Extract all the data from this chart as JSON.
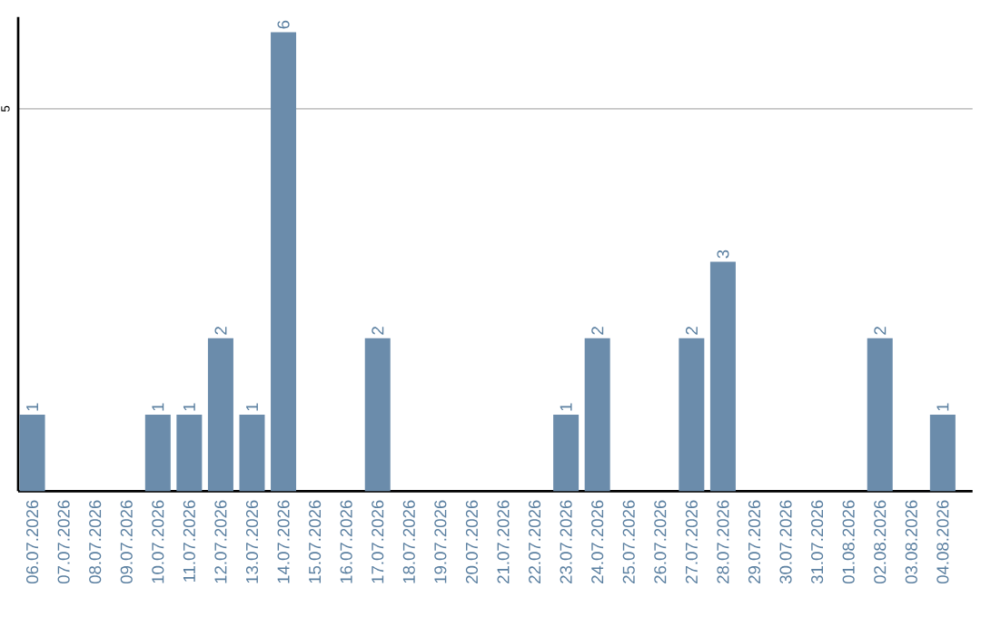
{
  "chart_data": {
    "type": "bar",
    "categories": [
      "06.07.2026",
      "07.07.2026",
      "08.07.2026",
      "09.07.2026",
      "10.07.2026",
      "11.07.2026",
      "12.07.2026",
      "13.07.2026",
      "14.07.2026",
      "15.07.2026",
      "16.07.2026",
      "17.07.2026",
      "18.07.2026",
      "19.07.2026",
      "20.07.2026",
      "21.07.2026",
      "22.07.2026",
      "23.07.2026",
      "24.07.2026",
      "25.07.2026",
      "26.07.2026",
      "27.07.2026",
      "28.07.2026",
      "29.07.2026",
      "30.07.2026",
      "31.07.2026",
      "01.08.2026",
      "02.08.2026",
      "03.08.2026",
      "04.08.2026"
    ],
    "values": [
      1,
      0,
      0,
      0,
      1,
      1,
      2,
      1,
      6,
      0,
      0,
      2,
      0,
      0,
      0,
      0,
      0,
      1,
      2,
      0,
      0,
      2,
      3,
      0,
      0,
      0,
      0,
      2,
      0,
      1
    ],
    "value_labels": [
      "1",
      null,
      null,
      null,
      "1",
      "1",
      "2",
      "1",
      "6",
      null,
      null,
      "2",
      null,
      null,
      null,
      null,
      null,
      "1",
      "2",
      null,
      null,
      "2",
      "3",
      null,
      null,
      null,
      null,
      "2",
      null,
      "1"
    ],
    "color": "#6b8cab",
    "ylim": [
      0,
      6.2
    ],
    "yticks": [
      5
    ],
    "grid": "y"
  }
}
